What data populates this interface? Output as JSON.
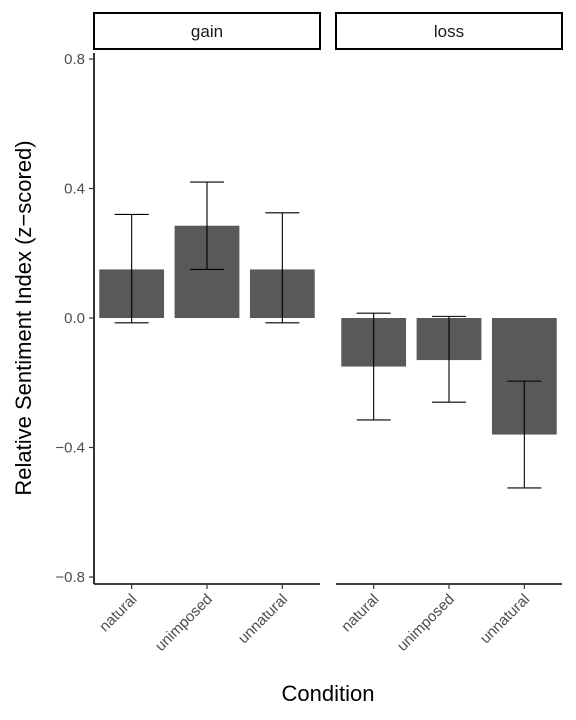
{
  "chart_data": {
    "type": "bar",
    "xlabel": "Condition",
    "ylabel": "Relative Sentiment Index (z−scored)",
    "ylim": [
      -0.8,
      0.8
    ],
    "yticks": [
      0.8,
      0.4,
      0.0,
      -0.4,
      -0.8
    ],
    "ytick_labels": [
      "0.8",
      "0.4",
      "0.0",
      "−0.4",
      "−0.8"
    ],
    "categories": [
      "natural",
      "unimposed",
      "unnatural"
    ],
    "grid": false,
    "bar_color": "#595959",
    "panels": [
      {
        "name": "gain",
        "values": [
          0.15,
          0.285,
          0.15
        ],
        "error_low": [
          -0.015,
          0.15,
          -0.015
        ],
        "error_high": [
          0.32,
          0.42,
          0.325
        ]
      },
      {
        "name": "loss",
        "values": [
          -0.15,
          -0.13,
          -0.36
        ],
        "error_low": [
          -0.315,
          -0.26,
          -0.525
        ],
        "error_high": [
          0.015,
          0.005,
          -0.195
        ]
      }
    ]
  }
}
